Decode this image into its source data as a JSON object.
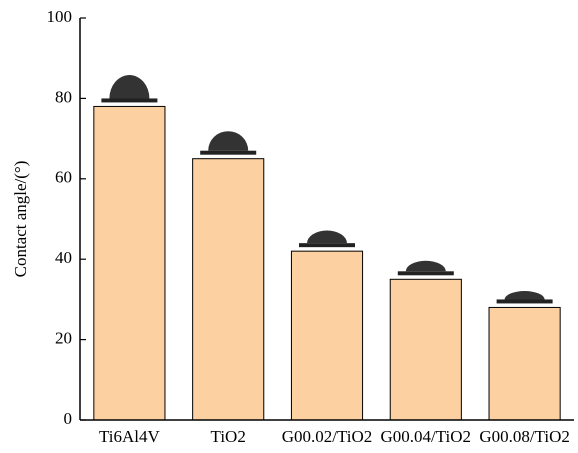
{
  "chart_data": {
    "type": "bar",
    "y_label": "Contact angle/(°)",
    "categories": [
      "Ti6Al4V",
      "TiO2",
      "G00.02/TiO2",
      "G00.04/TiO2",
      "G00.08/TiO2"
    ],
    "values": [
      78,
      65,
      42,
      35,
      28
    ],
    "color": "#fdd0a2",
    "ylim": [
      0,
      100
    ],
    "yticks": [
      0,
      20,
      40,
      60,
      80,
      100
    ]
  }
}
